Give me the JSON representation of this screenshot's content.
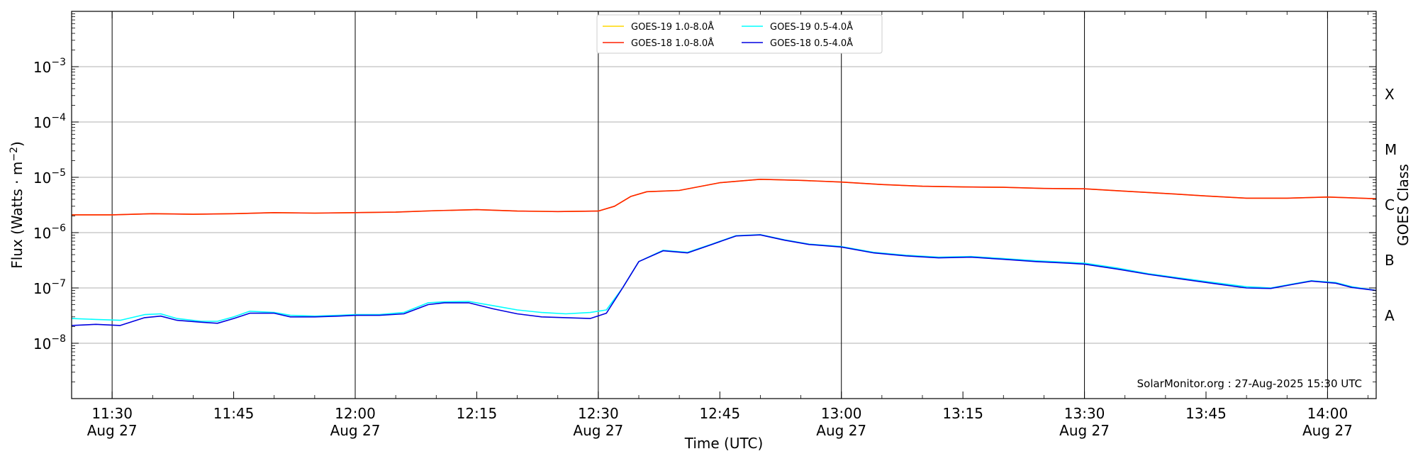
{
  "chart_data": {
    "type": "line",
    "xlabel": "Time (UTC)",
    "ylabel": "Flux (Watts · m",
    "ylabel_sup": "−2",
    "ylabel_close": ")",
    "right_label": "GOES Class",
    "yscale": "log",
    "ylim": [
      1e-09,
      0.01
    ],
    "xlim": [
      "11:25",
      "14:06"
    ],
    "grid": "horizontal at decades",
    "legend_position": "top-center",
    "credit": "SolarMonitor.org : 27-Aug-2025 15:30 UTC",
    "y_ticks": [
      {
        "value": 1e-08,
        "base": "10",
        "exp": "−8"
      },
      {
        "value": 1e-07,
        "base": "10",
        "exp": "−7"
      },
      {
        "value": 1e-06,
        "base": "10",
        "exp": "−6"
      },
      {
        "value": 1e-05,
        "base": "10",
        "exp": "−5"
      },
      {
        "value": 0.0001,
        "base": "10",
        "exp": "−4"
      },
      {
        "value": 0.001,
        "base": "10",
        "exp": "−3"
      }
    ],
    "x_ticks": [
      {
        "time": "11:30",
        "label": "11:30",
        "date": "Aug 27"
      },
      {
        "time": "11:45",
        "label": "11:45",
        "date": ""
      },
      {
        "time": "12:00",
        "label": "12:00",
        "date": "Aug 27"
      },
      {
        "time": "12:15",
        "label": "12:15",
        "date": ""
      },
      {
        "time": "12:30",
        "label": "12:30",
        "date": "Aug 27"
      },
      {
        "time": "12:45",
        "label": "12:45",
        "date": ""
      },
      {
        "time": "13:00",
        "label": "13:00",
        "date": "Aug 27"
      },
      {
        "time": "13:15",
        "label": "13:15",
        "date": ""
      },
      {
        "time": "13:30",
        "label": "13:30",
        "date": "Aug 27"
      },
      {
        "time": "13:45",
        "label": "13:45",
        "date": ""
      },
      {
        "time": "14:00",
        "label": "14:00",
        "date": "Aug 27"
      }
    ],
    "vertical_lines": [
      "11:30",
      "12:00",
      "12:30",
      "13:00",
      "13:30",
      "14:00"
    ],
    "goes_classes": [
      {
        "label": "A",
        "value": 3.16e-08
      },
      {
        "label": "B",
        "value": 3.16e-07
      },
      {
        "label": "C",
        "value": 3.16e-06
      },
      {
        "label": "M",
        "value": 3.16e-05
      },
      {
        "label": "X",
        "value": 0.000316
      }
    ],
    "legend": [
      {
        "name": "GOES-19 1.0-8.0Å",
        "color": "#ffd700"
      },
      {
        "name": "GOES-18 1.0-8.0Å",
        "color": "#ff2000"
      },
      {
        "name": "GOES-19 0.5-4.0Å",
        "color": "#00ffff"
      },
      {
        "name": "GOES-18 0.5-4.0Å",
        "color": "#0000e0"
      }
    ],
    "series": [
      {
        "name": "GOES-19 1.0-8.0Å",
        "color": "#ffd700",
        "x": [
          "11:25",
          "11:30",
          "11:35",
          "11:40",
          "11:45",
          "11:50",
          "11:55",
          "12:00",
          "12:05",
          "12:10",
          "12:15",
          "12:20",
          "12:25",
          "12:30",
          "12:32",
          "12:34",
          "12:36",
          "12:40",
          "12:45",
          "12:50",
          "12:55",
          "13:00",
          "13:05",
          "13:10",
          "13:15",
          "13:20",
          "13:25",
          "13:30",
          "13:35",
          "13:40",
          "13:45",
          "13:50",
          "13:55",
          "14:00",
          "14:06"
        ],
        "values": [
          2.1e-06,
          2.1e-06,
          2.2e-06,
          2.15e-06,
          2.2e-06,
          2.3e-06,
          2.25e-06,
          2.3e-06,
          2.35e-06,
          2.5e-06,
          2.6e-06,
          2.45e-06,
          2.4e-06,
          2.45e-06,
          3e-06,
          4.5e-06,
          5.5e-06,
          5.8e-06,
          8e-06,
          9.2e-06,
          8.8e-06,
          8.2e-06,
          7.4e-06,
          6.9e-06,
          6.7e-06,
          6.6e-06,
          6.3e-06,
          6.2e-06,
          5.6e-06,
          5.1e-06,
          4.6e-06,
          4.2e-06,
          4.2e-06,
          4.4e-06,
          4.1e-06
        ]
      },
      {
        "name": "GOES-18 1.0-8.0Å",
        "color": "#ff2000",
        "x": [
          "11:25",
          "11:30",
          "11:35",
          "11:40",
          "11:45",
          "11:50",
          "11:55",
          "12:00",
          "12:05",
          "12:10",
          "12:15",
          "12:20",
          "12:25",
          "12:30",
          "12:32",
          "12:34",
          "12:36",
          "12:40",
          "12:45",
          "12:50",
          "12:55",
          "13:00",
          "13:05",
          "13:10",
          "13:15",
          "13:20",
          "13:25",
          "13:30",
          "13:35",
          "13:40",
          "13:45",
          "13:50",
          "13:55",
          "14:00",
          "14:06"
        ],
        "values": [
          2.1e-06,
          2.1e-06,
          2.2e-06,
          2.15e-06,
          2.2e-06,
          2.3e-06,
          2.25e-06,
          2.3e-06,
          2.35e-06,
          2.5e-06,
          2.6e-06,
          2.45e-06,
          2.4e-06,
          2.45e-06,
          3e-06,
          4.5e-06,
          5.5e-06,
          5.8e-06,
          8e-06,
          9.2e-06,
          8.8e-06,
          8.2e-06,
          7.4e-06,
          6.9e-06,
          6.7e-06,
          6.6e-06,
          6.3e-06,
          6.2e-06,
          5.6e-06,
          5.1e-06,
          4.6e-06,
          4.2e-06,
          4.2e-06,
          4.4e-06,
          4.1e-06
        ]
      },
      {
        "name": "GOES-19 0.5-4.0Å",
        "color": "#00ffff",
        "x": [
          "11:25",
          "11:28",
          "11:31",
          "11:34",
          "11:36",
          "11:38",
          "11:41",
          "11:43",
          "11:45",
          "11:47",
          "11:50",
          "11:52",
          "11:55",
          "11:58",
          "12:00",
          "12:03",
          "12:06",
          "12:09",
          "12:11",
          "12:14",
          "12:17",
          "12:20",
          "12:23",
          "12:26",
          "12:29",
          "12:31",
          "12:33",
          "12:35",
          "12:38",
          "12:41",
          "12:44",
          "12:47",
          "12:50",
          "12:53",
          "12:56",
          "13:00",
          "13:04",
          "13:08",
          "13:12",
          "13:16",
          "13:20",
          "13:24",
          "13:28",
          "13:30",
          "13:34",
          "13:38",
          "13:42",
          "13:46",
          "13:50",
          "13:53",
          "13:56",
          "13:58",
          "14:01",
          "14:03",
          "14:06"
        ],
        "values": [
          2.8e-08,
          2.7e-08,
          2.6e-08,
          3.3e-08,
          3.4e-08,
          2.8e-08,
          2.5e-08,
          2.5e-08,
          3e-08,
          3.8e-08,
          3.6e-08,
          3.2e-08,
          3.1e-08,
          3.2e-08,
          3.3e-08,
          3.3e-08,
          3.6e-08,
          5.4e-08,
          5.6e-08,
          5.7e-08,
          4.8e-08,
          4e-08,
          3.6e-08,
          3.4e-08,
          3.6e-08,
          4e-08,
          1e-07,
          3e-07,
          4.8e-07,
          4.4e-07,
          6.2e-07,
          8.8e-07,
          9.2e-07,
          7.4e-07,
          6.2e-07,
          5.6e-07,
          4.4e-07,
          3.9e-07,
          3.6e-07,
          3.7e-07,
          3.4e-07,
          3.1e-07,
          2.9e-07,
          2.8e-07,
          2.3e-07,
          1.8e-07,
          1.5e-07,
          1.25e-07,
          1.05e-07,
          1e-07,
          1.2e-07,
          1.35e-07,
          1.25e-07,
          1.05e-07,
          9e-08
        ]
      },
      {
        "name": "GOES-18 0.5-4.0Å",
        "color": "#0000e0",
        "x": [
          "11:25",
          "11:28",
          "11:31",
          "11:34",
          "11:36",
          "11:38",
          "11:41",
          "11:43",
          "11:45",
          "11:47",
          "11:50",
          "11:52",
          "11:55",
          "11:58",
          "12:00",
          "12:03",
          "12:06",
          "12:09",
          "12:11",
          "12:14",
          "12:17",
          "12:20",
          "12:23",
          "12:26",
          "12:29",
          "12:31",
          "12:33",
          "12:35",
          "12:38",
          "12:41",
          "12:44",
          "12:47",
          "12:50",
          "12:53",
          "12:56",
          "13:00",
          "13:04",
          "13:08",
          "13:12",
          "13:16",
          "13:20",
          "13:24",
          "13:28",
          "13:30",
          "13:34",
          "13:38",
          "13:42",
          "13:46",
          "13:50",
          "13:53",
          "13:56",
          "13:58",
          "14:01",
          "14:03",
          "14:06"
        ],
        "values": [
          2.1e-08,
          2.2e-08,
          2.1e-08,
          2.9e-08,
          3.1e-08,
          2.6e-08,
          2.4e-08,
          2.3e-08,
          2.8e-08,
          3.5e-08,
          3.5e-08,
          3e-08,
          3e-08,
          3.1e-08,
          3.2e-08,
          3.2e-08,
          3.4e-08,
          5e-08,
          5.4e-08,
          5.4e-08,
          4.2e-08,
          3.4e-08,
          3e-08,
          2.9e-08,
          2.8e-08,
          3.5e-08,
          1e-07,
          3e-07,
          4.7e-07,
          4.3e-07,
          6.1e-07,
          8.7e-07,
          9.1e-07,
          7.3e-07,
          6.1e-07,
          5.5e-07,
          4.3e-07,
          3.8e-07,
          3.5e-07,
          3.6e-07,
          3.3e-07,
          3e-07,
          2.8e-07,
          2.7e-07,
          2.2e-07,
          1.75e-07,
          1.45e-07,
          1.2e-07,
          1e-07,
          9.8e-08,
          1.18e-07,
          1.33e-07,
          1.22e-07,
          1.02e-07,
          9e-08
        ]
      }
    ]
  }
}
